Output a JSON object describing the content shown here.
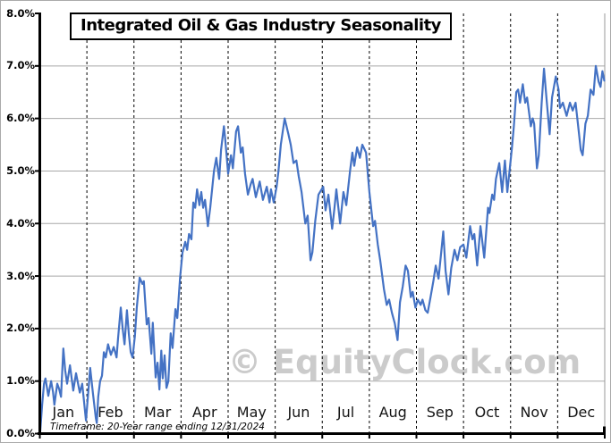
{
  "title": "Integrated Oil & Gas Industry Seasonality",
  "watermark": "© EquityClock.com",
  "footer_note": "Timeframe: 20-Year range ending 12/31/2024",
  "colors": {
    "line": "#4472C4",
    "grid": "#a8a8a8",
    "month_gridline": "#000000",
    "axis": "#000000",
    "plot_right_border": "#9a9a9a",
    "watermark": "#cbcbcb",
    "text": "#000000",
    "background": "#ffffff"
  },
  "chart_data": {
    "type": "line",
    "title": "Integrated Oil & Gas Industry Seasonality",
    "xlabel": "",
    "ylabel": "",
    "legend_position": "none",
    "x_axis": {
      "unit": "months",
      "categories": [
        "Jan",
        "Feb",
        "Mar",
        "Apr",
        "May",
        "Jun",
        "Jul",
        "Aug",
        "Sep",
        "Oct",
        "Nov",
        "Dec"
      ],
      "range": [
        0,
        12
      ],
      "gridlines": "vertical-dashed-black"
    },
    "y_axis": {
      "min": 0.0,
      "max": 8.0,
      "step": 1.0,
      "format": "percent",
      "tick_labels": [
        "0.0%",
        "1.0%",
        "2.0%",
        "3.0%",
        "4.0%",
        "5.0%",
        "6.0%",
        "7.0%",
        "8.0%"
      ],
      "gridlines": "horizontal-solid-gray"
    },
    "series": [
      {
        "name": "Seasonality (cumulative % gain, 20-yr avg)",
        "color": "#4472C4",
        "points": [
          [
            0.01,
            0.05
          ],
          [
            0.05,
            0.55
          ],
          [
            0.09,
            0.95
          ],
          [
            0.12,
            1.05
          ],
          [
            0.18,
            0.72
          ],
          [
            0.24,
            1.0
          ],
          [
            0.28,
            0.8
          ],
          [
            0.31,
            0.55
          ],
          [
            0.37,
            0.95
          ],
          [
            0.41,
            0.85
          ],
          [
            0.45,
            0.7
          ],
          [
            0.5,
            1.62
          ],
          [
            0.54,
            1.2
          ],
          [
            0.58,
            0.95
          ],
          [
            0.64,
            1.3
          ],
          [
            0.71,
            0.82
          ],
          [
            0.77,
            1.15
          ],
          [
            0.85,
            0.78
          ],
          [
            0.9,
            0.95
          ],
          [
            0.94,
            0.6
          ],
          [
            0.98,
            0.25
          ],
          [
            1.04,
            0.9
          ],
          [
            1.07,
            1.25
          ],
          [
            1.13,
            0.75
          ],
          [
            1.19,
            0.3
          ],
          [
            1.21,
            0.2
          ],
          [
            1.24,
            0.7
          ],
          [
            1.28,
            1.0
          ],
          [
            1.32,
            1.1
          ],
          [
            1.36,
            1.55
          ],
          [
            1.4,
            1.45
          ],
          [
            1.45,
            1.7
          ],
          [
            1.51,
            1.5
          ],
          [
            1.57,
            1.65
          ],
          [
            1.63,
            1.45
          ],
          [
            1.66,
            1.8
          ],
          [
            1.72,
            2.4
          ],
          [
            1.76,
            2.0
          ],
          [
            1.8,
            1.7
          ],
          [
            1.85,
            2.35
          ],
          [
            1.89,
            1.9
          ],
          [
            1.93,
            1.55
          ],
          [
            1.97,
            1.45
          ],
          [
            2.02,
            1.86
          ],
          [
            2.06,
            2.4
          ],
          [
            2.12,
            2.97
          ],
          [
            2.18,
            2.85
          ],
          [
            2.21,
            2.9
          ],
          [
            2.27,
            2.08
          ],
          [
            2.31,
            2.2
          ],
          [
            2.37,
            1.52
          ],
          [
            2.4,
            2.11
          ],
          [
            2.46,
            1.07
          ],
          [
            2.5,
            1.35
          ],
          [
            2.54,
            0.84
          ],
          [
            2.58,
            1.58
          ],
          [
            2.61,
            1.05
          ],
          [
            2.65,
            1.49
          ],
          [
            2.69,
            0.87
          ],
          [
            2.73,
            1.0
          ],
          [
            2.78,
            1.91
          ],
          [
            2.82,
            1.63
          ],
          [
            2.88,
            2.37
          ],
          [
            2.92,
            2.2
          ],
          [
            2.98,
            2.97
          ],
          [
            3.03,
            3.45
          ],
          [
            3.09,
            3.65
          ],
          [
            3.13,
            3.5
          ],
          [
            3.17,
            3.8
          ],
          [
            3.22,
            3.7
          ],
          [
            3.26,
            4.4
          ],
          [
            3.3,
            4.3
          ],
          [
            3.34,
            4.65
          ],
          [
            3.39,
            4.35
          ],
          [
            3.43,
            4.6
          ],
          [
            3.47,
            4.3
          ],
          [
            3.51,
            4.45
          ],
          [
            3.57,
            3.95
          ],
          [
            3.62,
            4.3
          ],
          [
            3.7,
            5.0
          ],
          [
            3.75,
            5.25
          ],
          [
            3.81,
            4.85
          ],
          [
            3.85,
            5.4
          ],
          [
            3.91,
            5.85
          ],
          [
            3.94,
            5.6
          ],
          [
            4.0,
            4.95
          ],
          [
            4.06,
            5.3
          ],
          [
            4.1,
            5.05
          ],
          [
            4.17,
            5.75
          ],
          [
            4.21,
            5.85
          ],
          [
            4.27,
            5.35
          ],
          [
            4.31,
            5.45
          ],
          [
            4.36,
            4.95
          ],
          [
            4.42,
            4.55
          ],
          [
            4.48,
            4.75
          ],
          [
            4.52,
            4.85
          ],
          [
            4.59,
            4.5
          ],
          [
            4.67,
            4.8
          ],
          [
            4.74,
            4.45
          ],
          [
            4.82,
            4.7
          ],
          [
            4.88,
            4.4
          ],
          [
            4.91,
            4.65
          ],
          [
            4.97,
            4.4
          ],
          [
            5.03,
            4.7
          ],
          [
            5.07,
            5.0
          ],
          [
            5.12,
            5.5
          ],
          [
            5.2,
            6.0
          ],
          [
            5.24,
            5.85
          ],
          [
            5.28,
            5.7
          ],
          [
            5.33,
            5.5
          ],
          [
            5.39,
            5.15
          ],
          [
            5.45,
            5.2
          ],
          [
            5.5,
            4.9
          ],
          [
            5.56,
            4.6
          ],
          [
            5.64,
            4.0
          ],
          [
            5.69,
            4.15
          ],
          [
            5.75,
            3.3
          ],
          [
            5.79,
            3.45
          ],
          [
            5.85,
            4.05
          ],
          [
            5.92,
            4.55
          ],
          [
            6.02,
            4.7
          ],
          [
            6.07,
            4.25
          ],
          [
            6.13,
            4.55
          ],
          [
            6.21,
            3.9
          ],
          [
            6.26,
            4.3
          ],
          [
            6.3,
            4.65
          ],
          [
            6.38,
            4.0
          ],
          [
            6.45,
            4.6
          ],
          [
            6.51,
            4.35
          ],
          [
            6.59,
            5.0
          ],
          [
            6.64,
            5.35
          ],
          [
            6.68,
            5.1
          ],
          [
            6.74,
            5.45
          ],
          [
            6.8,
            5.25
          ],
          [
            6.85,
            5.5
          ],
          [
            6.93,
            5.35
          ],
          [
            7.0,
            4.6
          ],
          [
            7.08,
            3.95
          ],
          [
            7.12,
            4.05
          ],
          [
            7.18,
            3.6
          ],
          [
            7.23,
            3.3
          ],
          [
            7.31,
            2.75
          ],
          [
            7.37,
            2.45
          ],
          [
            7.42,
            2.55
          ],
          [
            7.48,
            2.3
          ],
          [
            7.54,
            2.1
          ],
          [
            7.6,
            1.78
          ],
          [
            7.65,
            2.5
          ],
          [
            7.71,
            2.8
          ],
          [
            7.77,
            3.2
          ],
          [
            7.82,
            3.1
          ],
          [
            7.88,
            2.6
          ],
          [
            7.92,
            2.7
          ],
          [
            7.98,
            2.4
          ],
          [
            8.03,
            2.55
          ],
          [
            8.09,
            2.45
          ],
          [
            8.13,
            2.55
          ],
          [
            8.19,
            2.35
          ],
          [
            8.24,
            2.3
          ],
          [
            8.3,
            2.6
          ],
          [
            8.36,
            2.9
          ],
          [
            8.41,
            3.2
          ],
          [
            8.47,
            2.95
          ],
          [
            8.52,
            3.4
          ],
          [
            8.57,
            3.85
          ],
          [
            8.62,
            3.1
          ],
          [
            8.68,
            2.65
          ],
          [
            8.74,
            3.15
          ],
          [
            8.81,
            3.5
          ],
          [
            8.87,
            3.3
          ],
          [
            8.93,
            3.55
          ],
          [
            9.0,
            3.6
          ],
          [
            9.06,
            3.35
          ],
          [
            9.14,
            3.95
          ],
          [
            9.19,
            3.7
          ],
          [
            9.23,
            3.8
          ],
          [
            9.29,
            3.2
          ],
          [
            9.36,
            3.95
          ],
          [
            9.44,
            3.35
          ],
          [
            9.52,
            4.3
          ],
          [
            9.55,
            4.2
          ],
          [
            9.61,
            4.55
          ],
          [
            9.65,
            4.45
          ],
          [
            9.69,
            4.85
          ],
          [
            9.76,
            5.15
          ],
          [
            9.82,
            4.6
          ],
          [
            9.88,
            5.2
          ],
          [
            9.93,
            4.6
          ],
          [
            9.99,
            5.1
          ],
          [
            10.03,
            5.45
          ],
          [
            10.07,
            5.85
          ],
          [
            10.12,
            6.5
          ],
          [
            10.16,
            6.55
          ],
          [
            10.2,
            6.3
          ],
          [
            10.26,
            6.65
          ],
          [
            10.31,
            6.3
          ],
          [
            10.35,
            6.4
          ],
          [
            10.43,
            5.85
          ],
          [
            10.47,
            6.0
          ],
          [
            10.5,
            5.9
          ],
          [
            10.56,
            5.05
          ],
          [
            10.6,
            5.3
          ],
          [
            10.66,
            6.3
          ],
          [
            10.71,
            6.95
          ],
          [
            10.77,
            6.3
          ],
          [
            10.83,
            5.7
          ],
          [
            10.88,
            6.4
          ],
          [
            10.96,
            6.8
          ],
          [
            11.02,
            6.55
          ],
          [
            11.05,
            6.2
          ],
          [
            11.11,
            6.3
          ],
          [
            11.19,
            6.05
          ],
          [
            11.26,
            6.3
          ],
          [
            11.32,
            6.15
          ],
          [
            11.38,
            6.3
          ],
          [
            11.43,
            5.9
          ],
          [
            11.49,
            5.4
          ],
          [
            11.53,
            5.3
          ],
          [
            11.59,
            5.9
          ],
          [
            11.64,
            6.05
          ],
          [
            11.7,
            6.55
          ],
          [
            11.76,
            6.45
          ],
          [
            11.81,
            7.0
          ],
          [
            11.87,
            6.7
          ],
          [
            11.91,
            6.6
          ],
          [
            11.95,
            6.9
          ],
          [
            11.99,
            6.72
          ]
        ]
      }
    ]
  }
}
